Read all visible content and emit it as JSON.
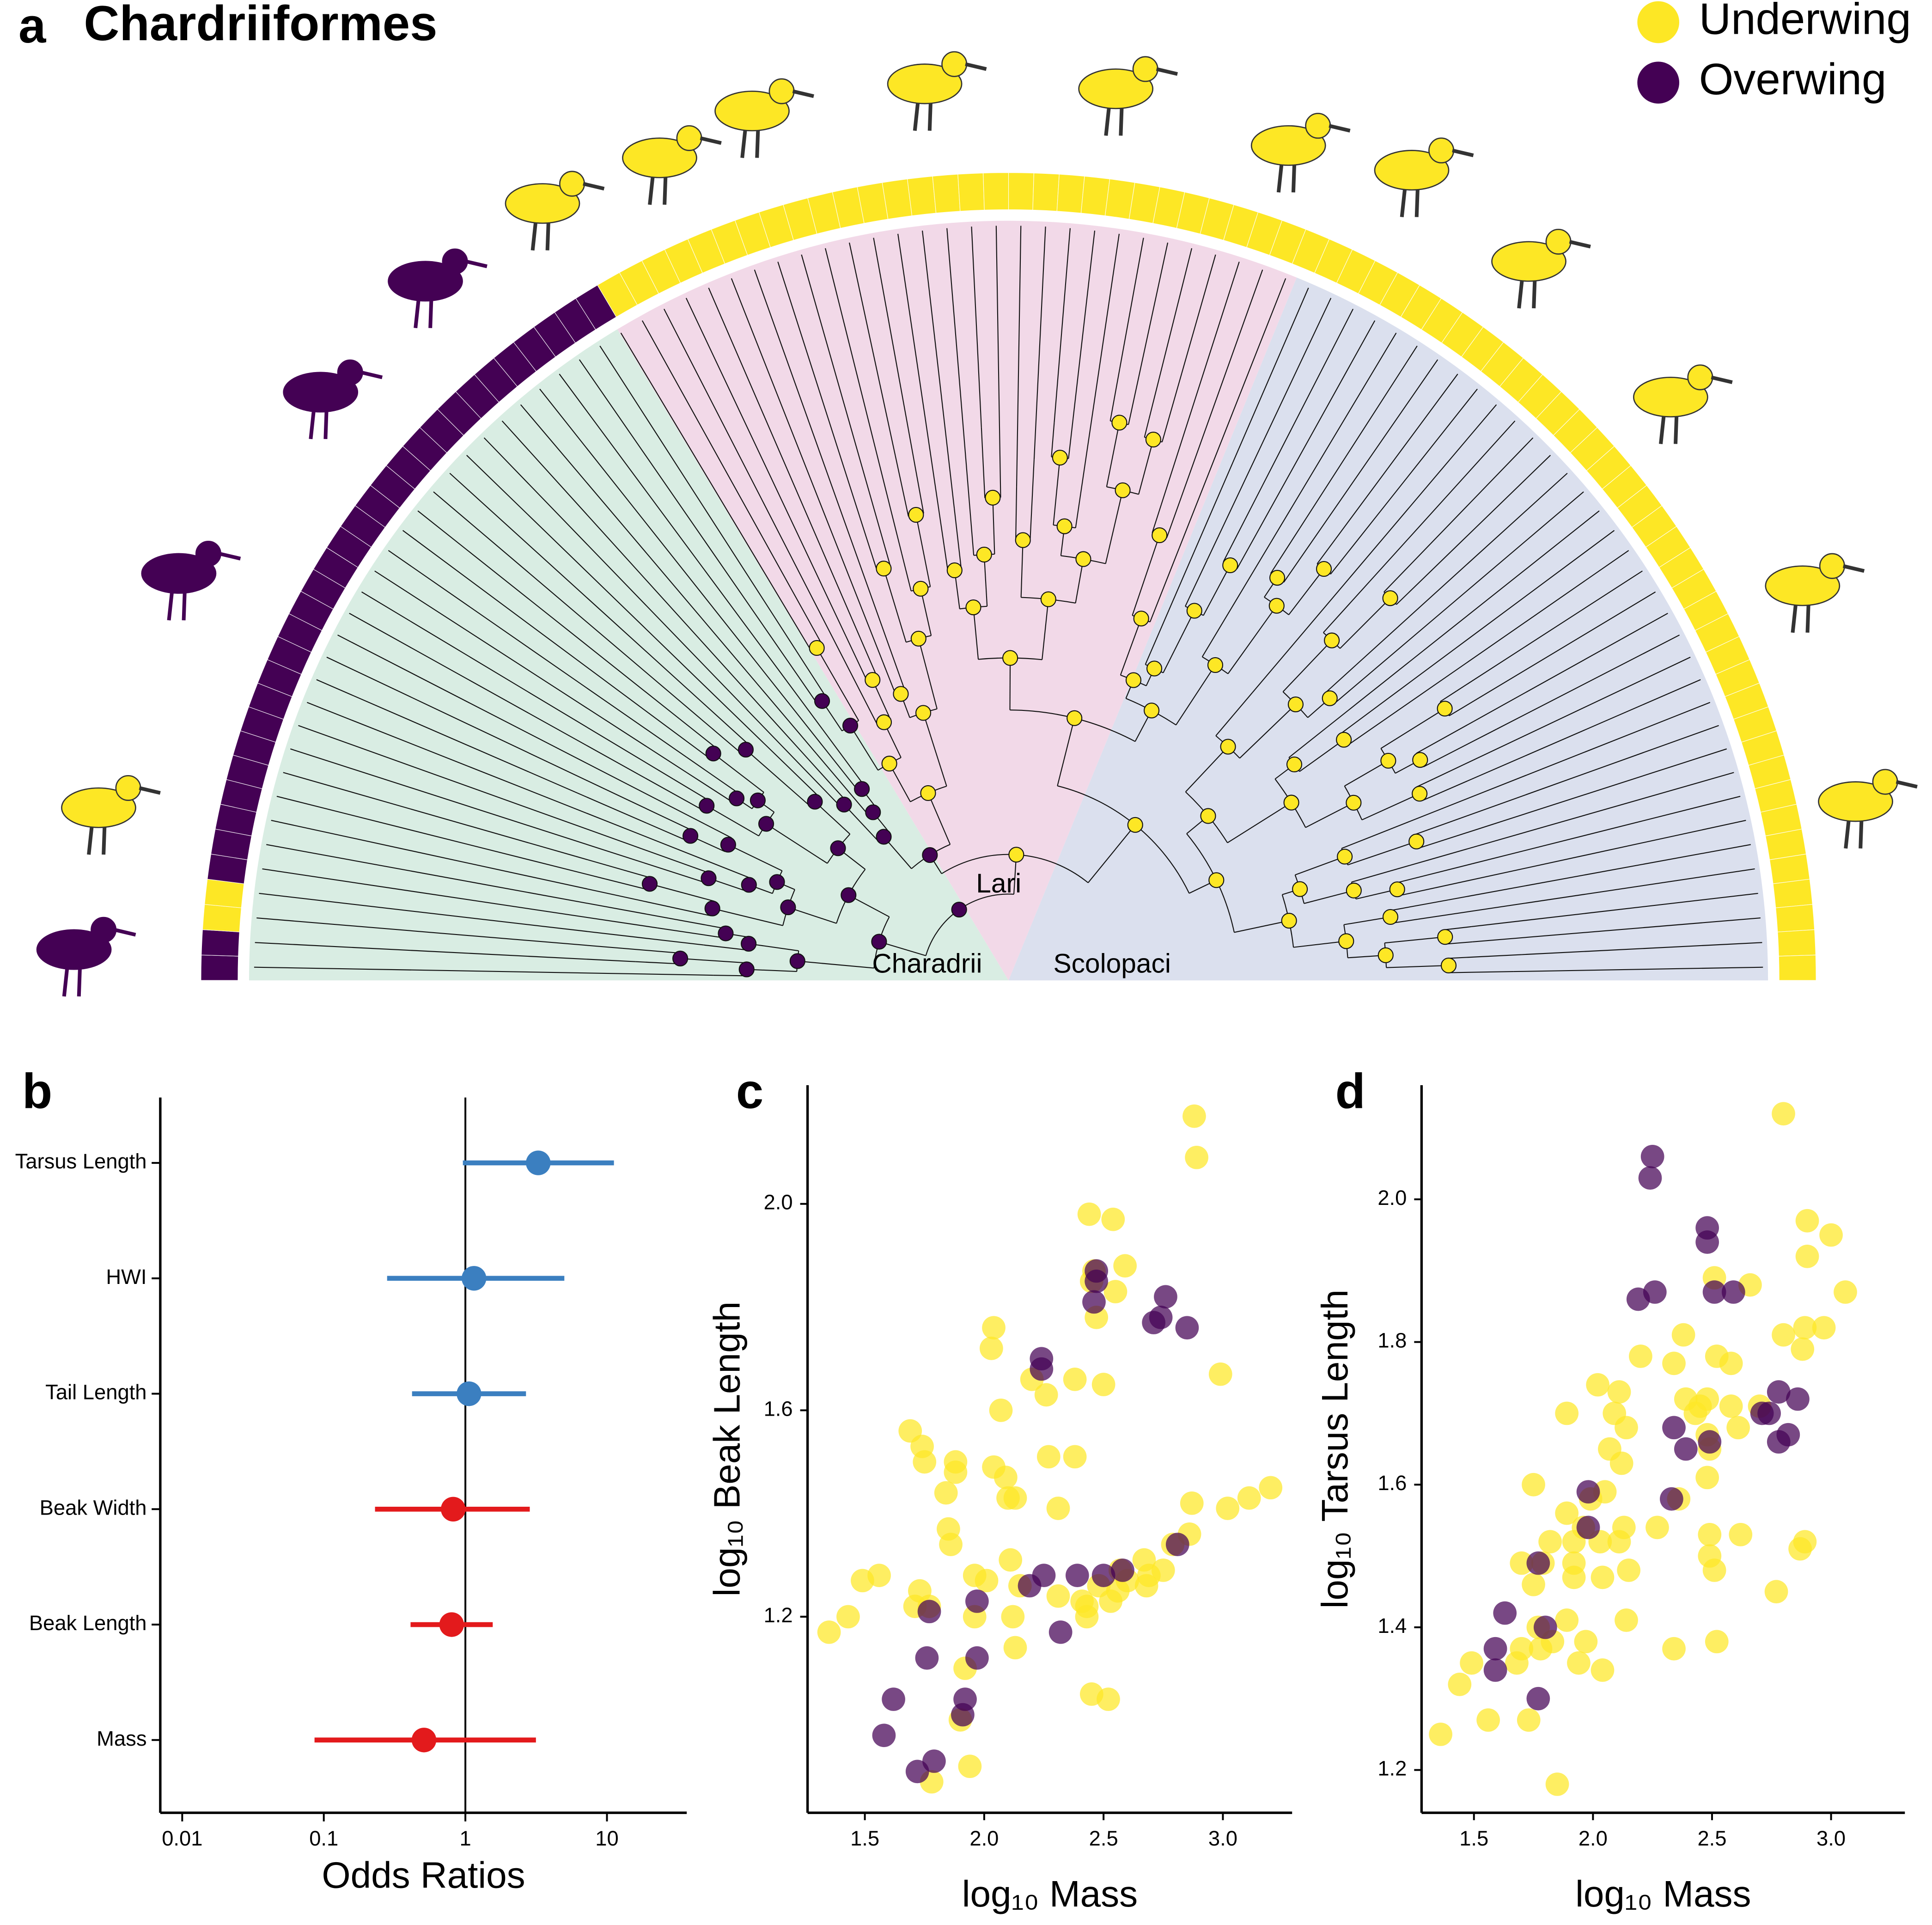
{
  "chart_data": [
    {
      "type": "phylogeny",
      "panel": "a",
      "title": "Chardriiformes",
      "legend": [
        {
          "name": "Underwing",
          "color": "#fde725"
        },
        {
          "name": "Overwing",
          "color": "#440154"
        }
      ],
      "clades": [
        "Lari",
        "Charadrii",
        "Scolopaci"
      ]
    },
    {
      "type": "forest",
      "panel": "b",
      "xlabel": "Odds Ratios",
      "categories": [
        "Tarsus Length",
        "HWI",
        "Tail Length",
        "Beak Width",
        "Beak Length",
        "Mass"
      ],
      "values": [
        3.27,
        1.15,
        1.06,
        0.82,
        0.8,
        0.51
      ],
      "lower": [
        0.96,
        0.28,
        0.42,
        0.23,
        0.41,
        0.086
      ],
      "upper": [
        11.2,
        5.0,
        2.68,
        2.85,
        1.56,
        3.15
      ],
      "colors": [
        "#3b7fc0",
        "#3b7fc0",
        "#3b7fc0",
        "#e31a1c",
        "#e31a1c",
        "#e31a1c"
      ],
      "xscale": "log",
      "xlim": [
        0.007,
        36.6
      ],
      "xticks": [
        0.01,
        0.1,
        1,
        10
      ],
      "reference_line": 1
    },
    {
      "type": "scatter",
      "panel": "c",
      "xlabel": "log₁₀ Mass",
      "ylabel": "log₁₀ Beak Length",
      "xlim": [
        1.26,
        3.29
      ],
      "ylim": [
        0.82,
        2.23
      ],
      "xticks": [
        1.5,
        {
          "value": 2,
          "label": "2.0"
        },
        2.5,
        {
          "value": 3,
          "label": "3.0"
        }
      ],
      "yticks": [
        1.2,
        1.6,
        {
          "value": 2,
          "label": "2.0"
        }
      ],
      "series": [
        {
          "color": "#fde725",
          "x": [
            2.88,
            2.89,
            2.44,
            2.54,
            2.59,
            2.46,
            2.45,
            2.47,
            2.55,
            2.04,
            2.03,
            2.07,
            2.99,
            2.5,
            2.38,
            2.2,
            2.26,
            2.38,
            2.27,
            1.69,
            1.74,
            1.75,
            1.88,
            1.88,
            2.04,
            2.09,
            1.84,
            2.1,
            2.13,
            2.31,
            1.85,
            1.86,
            3.2,
            3.11,
            3.02,
            2.87,
            2.86,
            2.79,
            2.67,
            2.57,
            2.75,
            2.69,
            2.6,
            2.56,
            2.68,
            2.48,
            2.41,
            2.43,
            2.43,
            2.53,
            2.11,
            2.15,
            2.12,
            1.96,
            2.01,
            1.73,
            1.77,
            1.71,
            1.56,
            1.49,
            1.43,
            1.35,
            2.13,
            1.96,
            1.92,
            1.9,
            1.94,
            1.78,
            2.45,
            2.52,
            2.31
          ],
          "values": [
            2.17,
            2.09,
            1.98,
            1.97,
            1.88,
            1.87,
            1.85,
            1.78,
            1.83,
            1.76,
            1.72,
            1.6,
            1.67,
            1.65,
            1.66,
            1.66,
            1.63,
            1.51,
            1.51,
            1.56,
            1.53,
            1.5,
            1.5,
            1.48,
            1.49,
            1.47,
            1.44,
            1.43,
            1.43,
            1.41,
            1.37,
            1.34,
            1.45,
            1.43,
            1.41,
            1.42,
            1.36,
            1.34,
            1.31,
            1.29,
            1.29,
            1.28,
            1.27,
            1.25,
            1.26,
            1.26,
            1.23,
            1.22,
            1.2,
            1.23,
            1.31,
            1.26,
            1.2,
            1.28,
            1.27,
            1.25,
            1.22,
            1.22,
            1.28,
            1.27,
            1.2,
            1.17,
            1.14,
            1.2,
            1.1,
            1.0,
            0.91,
            0.88,
            1.05,
            1.04,
            1.24
          ]
        },
        {
          "color": "#440154",
          "x": [
            2.47,
            2.47,
            2.46,
            2.76,
            2.74,
            2.71,
            2.85,
            2.24,
            2.24,
            2.81,
            2.58,
            2.5,
            2.39,
            2.25,
            2.19,
            1.97,
            2.32,
            1.77,
            1.97,
            1.76,
            1.92,
            1.91,
            1.62,
            1.58,
            1.79,
            1.72
          ],
          "values": [
            1.87,
            1.85,
            1.81,
            1.82,
            1.78,
            1.77,
            1.76,
            1.7,
            1.68,
            1.34,
            1.29,
            1.28,
            1.28,
            1.28,
            1.26,
            1.23,
            1.17,
            1.21,
            1.12,
            1.12,
            1.04,
            1.01,
            1.04,
            0.97,
            0.92,
            0.9
          ]
        }
      ]
    },
    {
      "type": "scatter",
      "panel": "d",
      "xlabel": "log₁₀ Mass",
      "ylabel": "log₁₀ Tarsus Length",
      "xlim": [
        1.28,
        3.31
      ],
      "ylim": [
        1.14,
        2.16
      ],
      "xticks": [
        1.5,
        {
          "value": 2,
          "label": "2.0"
        },
        2.5,
        {
          "value": 3,
          "label": "3.0"
        }
      ],
      "yticks": [
        1.2,
        1.4,
        1.6,
        1.8,
        {
          "value": 2,
          "label": "2.0"
        }
      ],
      "series": [
        {
          "color": "#fde725",
          "x": [
            2.8,
            2.9,
            3.0,
            2.9,
            2.51,
            2.66,
            3.06,
            2.97,
            2.89,
            2.8,
            2.88,
            2.38,
            2.52,
            2.34,
            2.58,
            2.39,
            2.45,
            2.2,
            2.02,
            2.11,
            2.48,
            2.58,
            2.7,
            2.43,
            2.09,
            2.61,
            2.48,
            2.49,
            1.89,
            2.14,
            2.07,
            2.12,
            1.75,
            2.05,
            2.48,
            1.99,
            2.36,
            1.89,
            2.13,
            1.96,
            2.27,
            2.89,
            2.49,
            2.62,
            2.87,
            2.49,
            1.92,
            2.03,
            1.82,
            2.11,
            1.79,
            1.92,
            2.15,
            2.04,
            2.51,
            1.7,
            1.75,
            1.92,
            2.77,
            2.14,
            1.89,
            1.77,
            1.97,
            1.83,
            1.7,
            1.78,
            1.68,
            1.49,
            1.94,
            2.04,
            2.34,
            2.52,
            1.44,
            1.56,
            1.73,
            1.36,
            1.85
          ],
          "values": [
            2.12,
            1.97,
            1.95,
            1.92,
            1.89,
            1.88,
            1.87,
            1.82,
            1.82,
            1.81,
            1.79,
            1.81,
            1.78,
            1.77,
            1.77,
            1.72,
            1.71,
            1.78,
            1.74,
            1.73,
            1.72,
            1.71,
            1.71,
            1.7,
            1.7,
            1.68,
            1.67,
            1.65,
            1.7,
            1.68,
            1.65,
            1.63,
            1.6,
            1.59,
            1.61,
            1.58,
            1.58,
            1.56,
            1.54,
            1.54,
            1.54,
            1.52,
            1.53,
            1.53,
            1.51,
            1.5,
            1.52,
            1.52,
            1.52,
            1.52,
            1.49,
            1.49,
            1.48,
            1.47,
            1.48,
            1.49,
            1.46,
            1.47,
            1.45,
            1.41,
            1.41,
            1.4,
            1.38,
            1.38,
            1.37,
            1.37,
            1.35,
            1.35,
            1.35,
            1.34,
            1.37,
            1.38,
            1.32,
            1.27,
            1.27,
            1.25,
            1.18
          ]
        },
        {
          "color": "#440154",
          "x": [
            2.25,
            2.24,
            2.48,
            2.48,
            2.19,
            2.26,
            2.51,
            2.59,
            2.78,
            2.86,
            2.71,
            2.74,
            2.82,
            2.78,
            2.34,
            2.49,
            2.39,
            2.33,
            1.98,
            1.98,
            1.77,
            1.63,
            1.8,
            1.59,
            1.59,
            1.77
          ],
          "values": [
            2.06,
            2.03,
            1.96,
            1.94,
            1.86,
            1.87,
            1.87,
            1.87,
            1.73,
            1.72,
            1.7,
            1.7,
            1.67,
            1.66,
            1.68,
            1.66,
            1.65,
            1.58,
            1.59,
            1.54,
            1.49,
            1.42,
            1.4,
            1.37,
            1.34,
            1.3
          ]
        }
      ]
    }
  ]
}
